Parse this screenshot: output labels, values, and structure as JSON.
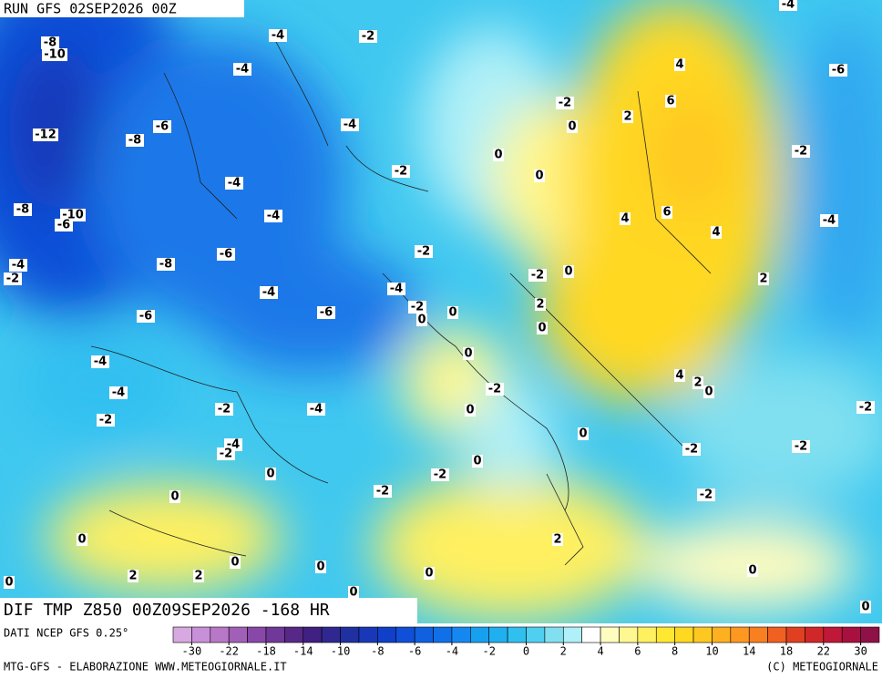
{
  "header": {
    "run": "RUN GFS 02SEP2026 00Z"
  },
  "map": {
    "title": "DIF TMP Z850 00Z09SEP2026 -168 HR",
    "contour_labels": [
      -8,
      -10,
      -12,
      -8,
      -6,
      -4,
      -4,
      -2,
      -4,
      -4,
      -4,
      -8,
      -10,
      -6,
      -6,
      -8,
      -4,
      -6,
      -6,
      -4,
      -2,
      -4,
      -4,
      -2,
      -2,
      -4,
      -4,
      -2,
      0,
      0,
      0,
      2,
      2,
      0,
      0,
      0,
      0,
      -2,
      -2,
      0,
      0,
      -2,
      0,
      0,
      -2,
      0,
      -4,
      -2,
      -2,
      0,
      0,
      0,
      -2,
      2,
      6,
      4,
      4,
      6,
      4,
      2,
      -2,
      0,
      2,
      0,
      4,
      2,
      0,
      0,
      -2,
      -2,
      2,
      0,
      -2,
      -2,
      -4,
      -2,
      -6,
      -4,
      0,
      0
    ]
  },
  "footer": {
    "source": "DATI NCEP GFS 0.25°",
    "credit": "MTG-GFS - ELABORAZIONE WWW.METEOGIORNALE.IT",
    "copyright": "(C) METEOGIORNALE",
    "colorbar": {
      "ticks": [
        -30,
        -22,
        -18,
        -14,
        -10,
        -8,
        -6,
        -4,
        -2,
        0,
        2,
        4,
        6,
        8,
        10,
        14,
        18,
        22,
        30
      ],
      "colors": [
        "#d8a8e0",
        "#c890d8",
        "#b878c8",
        "#a060b8",
        "#8848a8",
        "#703898",
        "#582888",
        "#402080",
        "#302890",
        "#2030a0",
        "#1838b8",
        "#1040c8",
        "#1050d8",
        "#1060e0",
        "#1070e8",
        "#1488f0",
        "#18a0f0",
        "#20b0f0",
        "#30c0f0",
        "#50d0f0",
        "#80e0f0",
        "#b0f0f8",
        "#ffffff",
        "#fffcc0",
        "#fff890",
        "#fff060",
        "#ffe830",
        "#ffd820",
        "#ffc820",
        "#ffb020",
        "#ff9820",
        "#f88020",
        "#f06020",
        "#e04020",
        "#d02828",
        "#c01838",
        "#a81040",
        "#901048"
      ]
    }
  }
}
